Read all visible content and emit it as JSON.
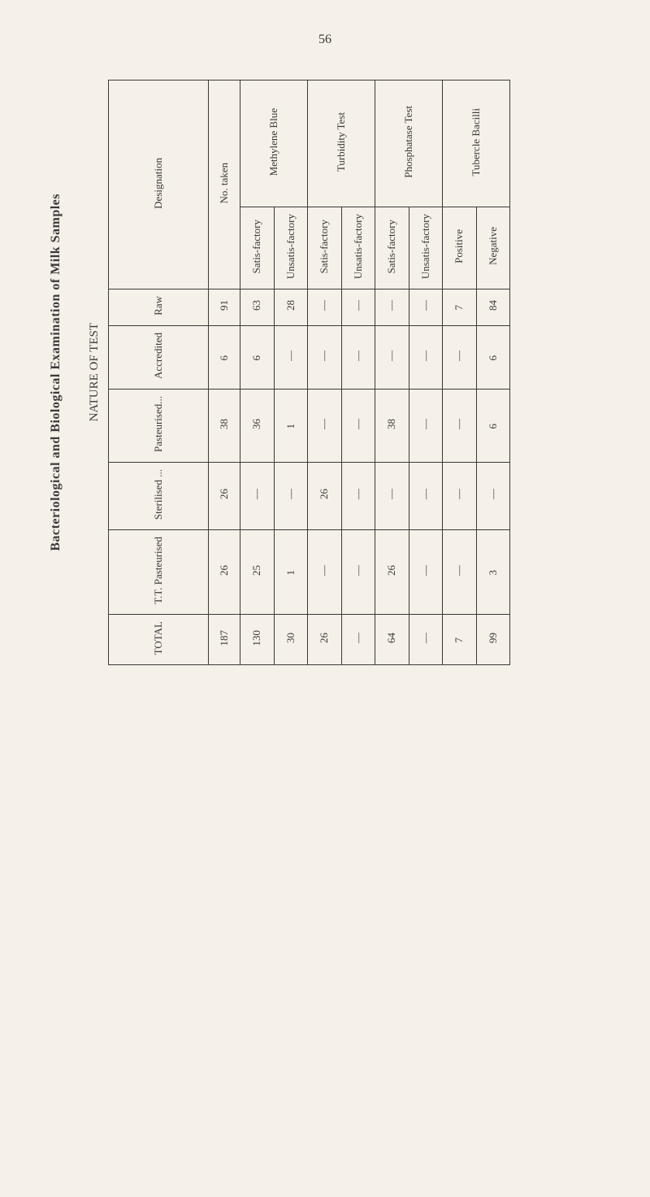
{
  "page_number": "56",
  "title": "Bacteriological and Biological Examination of Milk Samples",
  "nature_label": "NATURE OF TEST",
  "headers": {
    "designation": "Designation",
    "no_taken": "No. taken",
    "methylene_blue": "Methylene Blue",
    "turbidity_test": "Turbidity Test",
    "phosphatase_test": "Phosphatase Test",
    "tubercle_bacilli": "Tubercle Bacilli",
    "satis": "Satis-factory",
    "unsatis": "Unsatis-factory",
    "positive": "Positive",
    "negative": "Negative"
  },
  "rows": {
    "raw": {
      "label": "Raw",
      "no_taken": "91",
      "mb_satis": "63",
      "mb_unsatis": "28",
      "turb_satis": "—",
      "turb_unsatis": "—",
      "phos_satis": "—",
      "phos_unsatis": "—",
      "positive": "7",
      "negative": "84"
    },
    "accredited": {
      "label": "Accredited",
      "no_taken": "6",
      "mb_satis": "6",
      "mb_unsatis": "—",
      "turb_satis": "—",
      "turb_unsatis": "—",
      "phos_satis": "—",
      "phos_unsatis": "—",
      "positive": "—",
      "negative": "6"
    },
    "pasteurised": {
      "label": "Pasteurised...",
      "no_taken": "38",
      "mb_satis": "36",
      "mb_unsatis": "1",
      "turb_satis": "—",
      "turb_unsatis": "—",
      "phos_satis": "38",
      "phos_unsatis": "—",
      "positive": "—",
      "negative": "6"
    },
    "sterilised": {
      "label": "Sterilised ...",
      "no_taken": "26",
      "mb_satis": "—",
      "mb_unsatis": "—",
      "turb_satis": "26",
      "turb_unsatis": "—",
      "phos_satis": "—",
      "phos_unsatis": "—",
      "positive": "—",
      "negative": "—"
    },
    "tt_pasteurised": {
      "label": "T.T. Pasteurised",
      "no_taken": "26",
      "mb_satis": "25",
      "mb_unsatis": "1",
      "turb_satis": "—",
      "turb_unsatis": "—",
      "phos_satis": "26",
      "phos_unsatis": "—",
      "positive": "—",
      "negative": "3"
    },
    "total": {
      "label": "TOTAL",
      "no_taken": "187",
      "mb_satis": "130",
      "mb_unsatis": "30",
      "turb_satis": "26",
      "turb_unsatis": "—",
      "phos_satis": "64",
      "phos_unsatis": "—",
      "positive": "7",
      "negative": "99"
    }
  }
}
